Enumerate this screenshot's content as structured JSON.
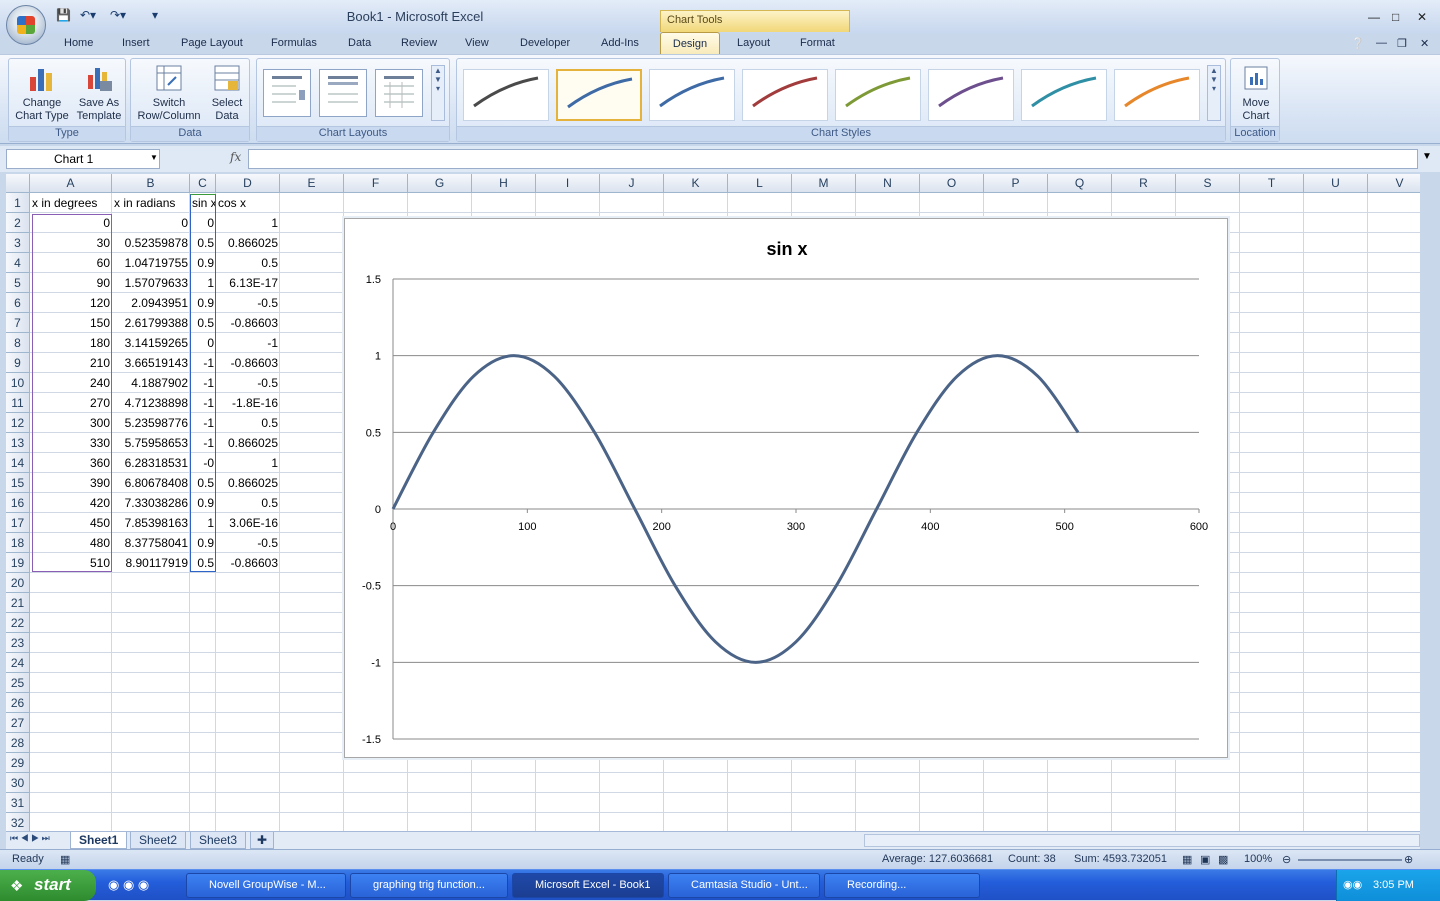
{
  "window": {
    "title": "Book1 - Microsoft Excel",
    "context_tab_group": "Chart Tools",
    "qat_icons": [
      "save-icon",
      "undo-icon",
      "redo-icon",
      "customize-icon"
    ]
  },
  "ribbon": {
    "tabs": [
      "Home",
      "Insert",
      "Page Layout",
      "Formulas",
      "Data",
      "Review",
      "View",
      "Developer",
      "Add-Ins"
    ],
    "context_tabs": [
      "Design",
      "Layout",
      "Format"
    ],
    "active_tab": "Design",
    "groups": {
      "type": {
        "label": "Type",
        "change_chart_type": "Change Chart Type",
        "save_as_template": "Save As Template"
      },
      "data": {
        "label": "Data",
        "switch_row_column": "Switch Row/Column",
        "select_data": "Select Data"
      },
      "chart_layouts": {
        "label": "Chart Layouts"
      },
      "chart_styles": {
        "label": "Chart Styles",
        "colors": [
          "#4a4a4a",
          "#3e6aa5",
          "#3e6aa5",
          "#a23b3b",
          "#7e9a36",
          "#6d4f8e",
          "#2f8fa5",
          "#e6872b"
        ],
        "selected_index": 1
      },
      "location": {
        "label": "Location",
        "move_chart": "Move Chart"
      }
    }
  },
  "formula_bar": {
    "name_box": "Chart 1",
    "fx": "fx",
    "formula": ""
  },
  "grid": {
    "columns": [
      "A",
      "B",
      "C",
      "D",
      "E",
      "F",
      "G",
      "H",
      "I",
      "J",
      "K",
      "L",
      "M",
      "N",
      "O",
      "P",
      "Q",
      "R",
      "S",
      "T",
      "U",
      "V"
    ],
    "row_count": 32,
    "header": [
      "x in degrees",
      "x in radians",
      "sin x",
      "cos x"
    ],
    "rows": [
      [
        "0",
        "0",
        "0",
        "1"
      ],
      [
        "30",
        "0.52359878",
        "0.5",
        "0.866025"
      ],
      [
        "60",
        "1.04719755",
        "0.9",
        "0.5"
      ],
      [
        "90",
        "1.57079633",
        "1",
        "6.13E-17"
      ],
      [
        "120",
        "2.0943951",
        "0.9",
        "-0.5"
      ],
      [
        "150",
        "2.61799388",
        "0.5",
        "-0.86603"
      ],
      [
        "180",
        "3.14159265",
        "0",
        "-1"
      ],
      [
        "210",
        "3.66519143",
        "-1",
        "-0.86603"
      ],
      [
        "240",
        "4.1887902",
        "-1",
        "-0.5"
      ],
      [
        "270",
        "4.71238898",
        "-1",
        "-1.8E-16"
      ],
      [
        "300",
        "5.23598776",
        "-1",
        "0.5"
      ],
      [
        "330",
        "5.75958653",
        "-1",
        "0.866025"
      ],
      [
        "360",
        "6.28318531",
        "-0",
        "1"
      ],
      [
        "390",
        "6.80678408",
        "0.5",
        "0.866025"
      ],
      [
        "420",
        "7.33038286",
        "0.9",
        "0.5"
      ],
      [
        "450",
        "7.85398163",
        "1",
        "3.06E-16"
      ],
      [
        "480",
        "8.37758041",
        "0.9",
        "-0.5"
      ],
      [
        "510",
        "8.90117919",
        "0.5",
        "-0.86603"
      ]
    ]
  },
  "chart_data": {
    "type": "line",
    "title": "sin x",
    "x": [
      0,
      30,
      60,
      90,
      120,
      150,
      180,
      210,
      240,
      270,
      300,
      330,
      360,
      390,
      420,
      450,
      480,
      510
    ],
    "series": [
      {
        "name": "",
        "color": "#4a6386",
        "values": [
          0,
          0.5,
          0.866,
          1,
          0.866,
          0.5,
          0,
          -0.5,
          -0.866,
          -1,
          -0.866,
          -0.5,
          0,
          0.5,
          0.866,
          1,
          0.866,
          0.5
        ]
      }
    ],
    "xlim": [
      0,
      600
    ],
    "ylim": [
      -1.5,
      1.5
    ],
    "xticks": [
      0,
      100,
      200,
      300,
      400,
      500,
      600
    ],
    "yticks": [
      1.5,
      1,
      0.5,
      0,
      -0.5,
      -1,
      -1.5
    ],
    "ytick_labels": [
      "1.5",
      "1",
      "0.5",
      "0",
      "-0.5",
      "-1",
      "-1.5"
    ],
    "grid": true,
    "legend": "none",
    "smooth": true
  },
  "sheets": {
    "tabs": [
      "Sheet1",
      "Sheet2",
      "Sheet3"
    ],
    "active": "Sheet1"
  },
  "status": {
    "ready": "Ready",
    "average": "Average: 127.6036681",
    "count": "Count: 38",
    "sum": "Sum: 4593.732051",
    "zoom": "100%"
  },
  "taskbar": {
    "start": "start",
    "tasks": [
      "Novell GroupWise - M...",
      "graphing trig function...",
      "Microsoft Excel - Book1",
      "Camtasia Studio - Unt...",
      "Recording..."
    ],
    "active_task": 2,
    "clock": "3:05 PM"
  }
}
